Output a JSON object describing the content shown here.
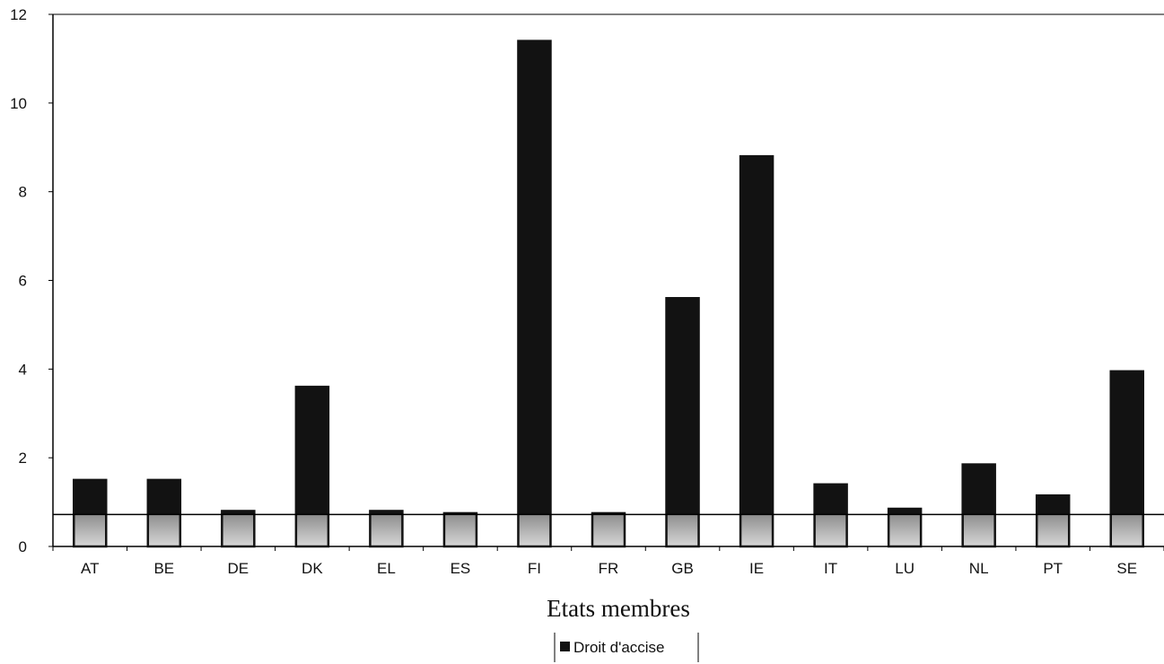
{
  "chart_data": {
    "type": "bar",
    "categories": [
      "AT",
      "BE",
      "DE",
      "DK",
      "EL",
      "ES",
      "FI",
      "FR",
      "GB",
      "IE",
      "IT",
      "LU",
      "NL",
      "PT",
      "SE"
    ],
    "series": [
      {
        "name": "Droit d'accise",
        "values": [
          1.5,
          1.5,
          0.8,
          3.6,
          0.8,
          0.75,
          11.4,
          0.75,
          5.6,
          8.8,
          1.4,
          0.85,
          1.85,
          1.15,
          3.95
        ]
      }
    ],
    "reference_line": 0.72,
    "ylim": [
      0,
      12
    ],
    "yticks": [
      0,
      2,
      4,
      6,
      8,
      10,
      12
    ],
    "xlabel": "Etats membres",
    "ylabel": "",
    "title": "",
    "legend": {
      "label": "Droit d'accise",
      "position": "bottom-center"
    },
    "grid": false,
    "colors": {
      "bar": "#121212",
      "bar_light": "#cfcfcf",
      "axis": "#000000"
    }
  }
}
